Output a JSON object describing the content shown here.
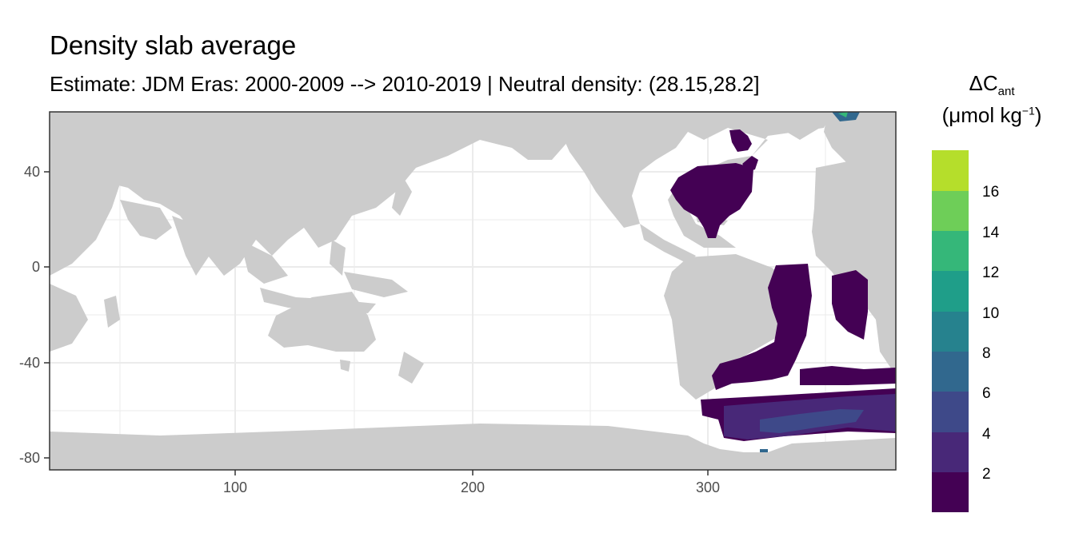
{
  "title": "Density slab average",
  "subtitle": "Estimate: JDM Eras: 2000-2009 --> 2010-2019 | Neutral density: (28.15,28.2]",
  "axes": {
    "x_ticks": [
      "100",
      "200",
      "300"
    ],
    "y_ticks": [
      "40",
      "0",
      "-40",
      "-80"
    ],
    "xlim": [
      20,
      380
    ],
    "ylim": [
      -85,
      65
    ]
  },
  "legend": {
    "title_main": "ΔC",
    "title_sub": "ant",
    "title_unit_open": "(μmol kg",
    "title_unit_sup": "−1",
    "title_unit_close": ")",
    "labels": [
      "2",
      "4",
      "6",
      "8",
      "10",
      "12",
      "14",
      "16"
    ],
    "colors": [
      "#440154",
      "#482878",
      "#3e4989",
      "#31688e",
      "#26828e",
      "#1f9e89",
      "#35b779",
      "#6ece58",
      "#b5de2b",
      "#fde725"
    ]
  },
  "colors": {
    "land": "#cccccc",
    "ocean_nodata": "#ffffff",
    "grid": "#ebebeb",
    "panel_border": "#333333"
  },
  "map_data": {
    "extent_lon": [
      20,
      380
    ],
    "extent_lat": [
      -85,
      65
    ],
    "regions": [
      {
        "name": "north-atlantic",
        "level": 0
      },
      {
        "name": "south-atlantic",
        "level": 0
      },
      {
        "name": "southern-ocean",
        "level": 1
      },
      {
        "name": "weddell-core",
        "level": 2
      },
      {
        "name": "greenland-sea-patch",
        "level": 5
      }
    ]
  }
}
